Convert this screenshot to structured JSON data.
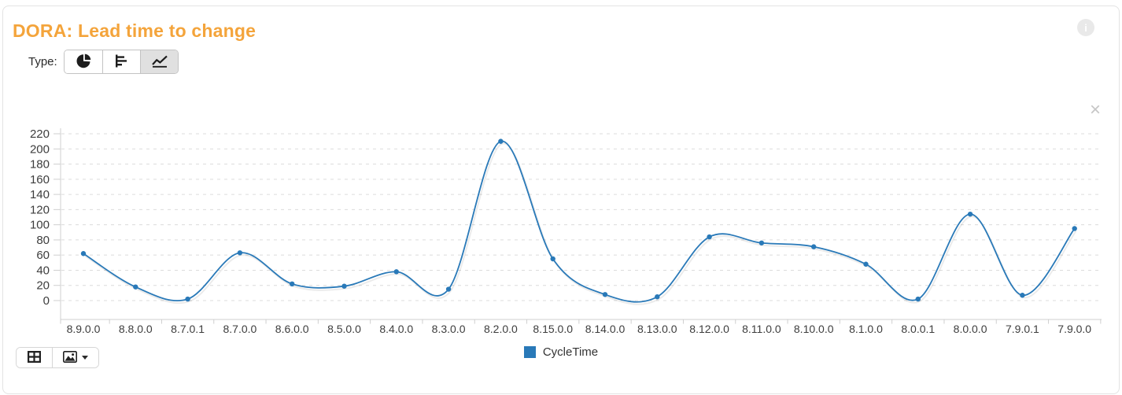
{
  "card": {
    "title": "DORA: Lead time to change",
    "info_icon": "i",
    "close_icon": "×"
  },
  "type_selector": {
    "label": "Type:",
    "options": [
      {
        "name": "pie-chart",
        "selected": false
      },
      {
        "name": "bar-chart",
        "selected": false
      },
      {
        "name": "line-chart",
        "selected": true
      }
    ]
  },
  "toolbar": {
    "buttons": [
      {
        "icon": "data-table-icon"
      },
      {
        "icon": "export-image-icon",
        "has_dropdown": true
      }
    ]
  },
  "legend": {
    "label": "CycleTime",
    "swatch_color": "#2979b8",
    "position": "bottom-center"
  },
  "colors": {
    "title": "#f4a43b",
    "series": "#2979b8",
    "grid": "#dcdcdc",
    "axis": "#cfcfcf",
    "tick_text": "#3d3d3d",
    "selected_type_bg": "#e0e0e0"
  },
  "chart_data": {
    "type": "line",
    "title": "DORA: Lead time to change",
    "xlabel": "",
    "ylabel": "",
    "categories": [
      "8.9.0.0",
      "8.8.0.0",
      "8.7.0.1",
      "8.7.0.0",
      "8.6.0.0",
      "8.5.0.0",
      "8.4.0.0",
      "8.3.0.0",
      "8.2.0.0",
      "8.15.0.0",
      "8.14.0.0",
      "8.13.0.0",
      "8.12.0.0",
      "8.11.0.0",
      "8.10.0.0",
      "8.1.0.0",
      "8.0.0.1",
      "8.0.0.0",
      "7.9.0.1",
      "7.9.0.0"
    ],
    "series": [
      {
        "name": "CycleTime",
        "color": "#2979b8",
        "values": [
          62,
          18,
          2,
          63,
          22,
          19,
          38,
          15,
          210,
          55,
          8,
          5,
          84,
          76,
          71,
          48,
          2,
          114,
          7,
          95
        ]
      }
    ],
    "y_ticks": [
      0,
      20,
      40,
      60,
      80,
      100,
      120,
      140,
      160,
      180,
      200,
      220
    ],
    "ylim": [
      0,
      220
    ],
    "grid": "horizontal-dashed",
    "smoothing": true,
    "markers": true,
    "legend_position": "bottom-center"
  }
}
